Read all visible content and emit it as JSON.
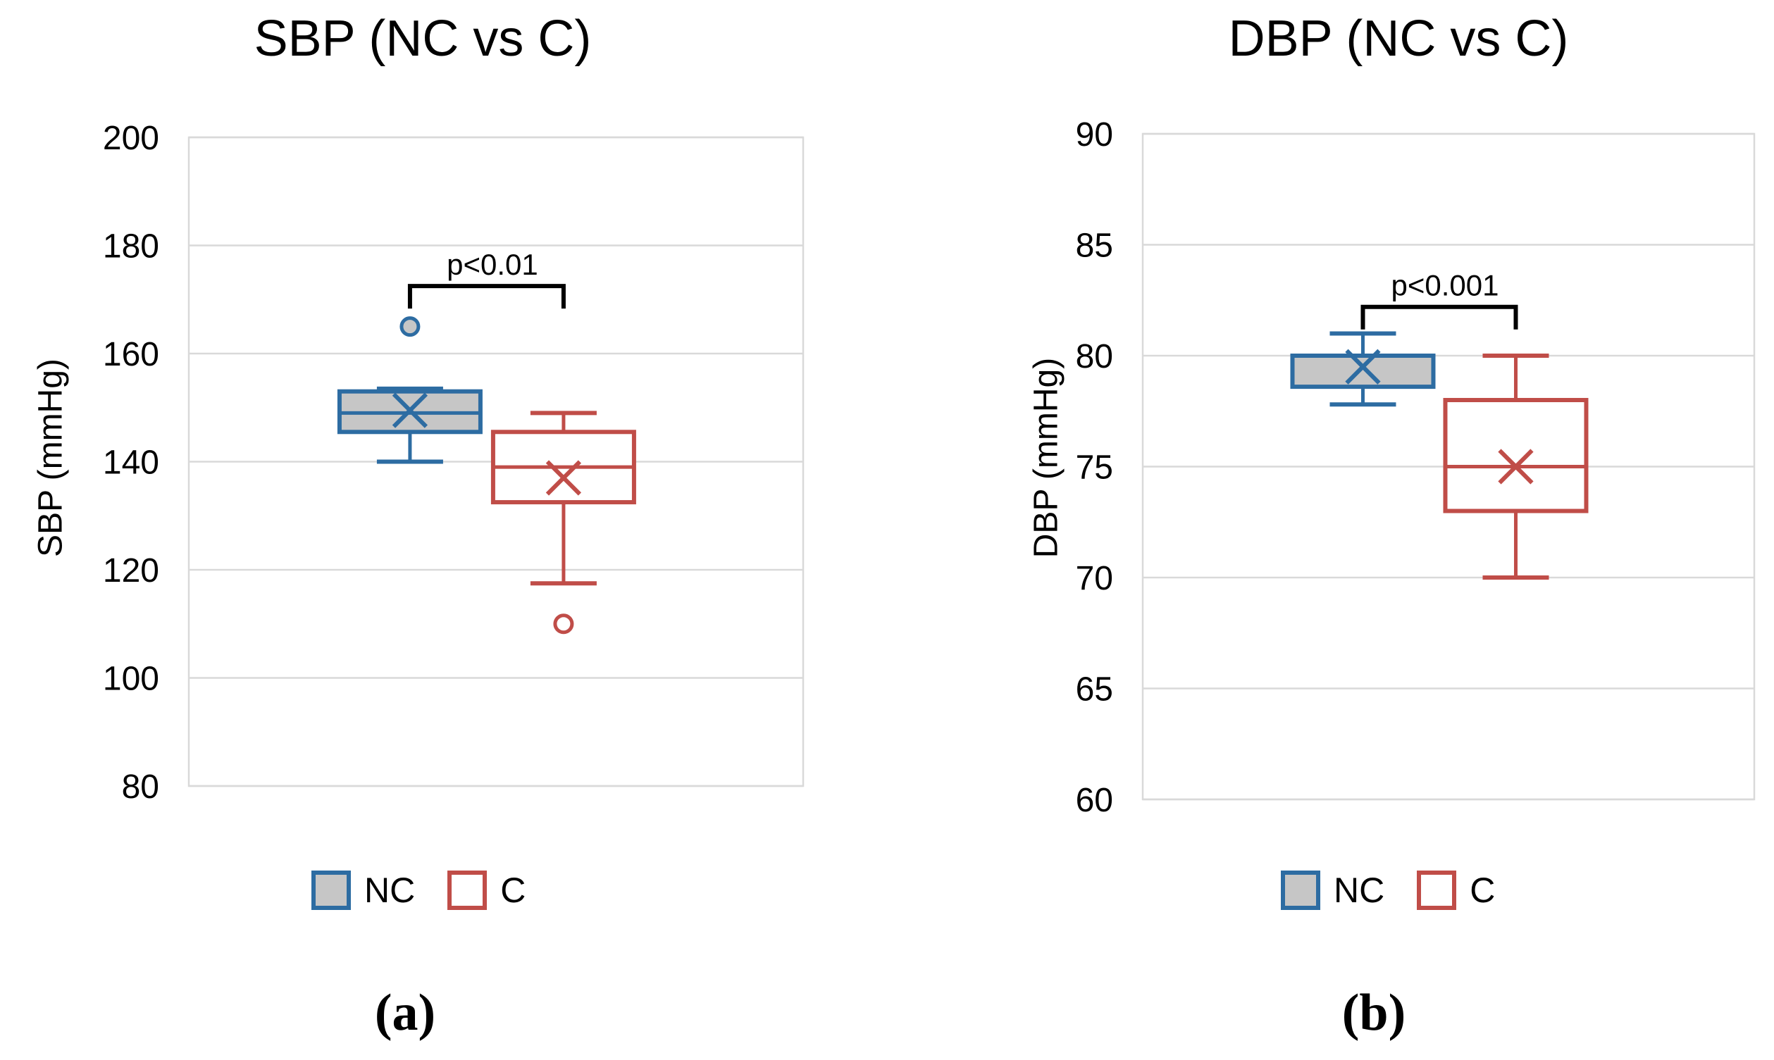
{
  "colors": {
    "nc_stroke": "#2D6CA2",
    "nc_fill": "#C6C6C6",
    "c_stroke": "#C04D48",
    "c_fill": "#FFFFFF",
    "gridline": "#D9D9D9",
    "bracket": "#000000",
    "text": "#000000",
    "background": "#FFFFFF"
  },
  "chart_data": [
    {
      "type": "boxplot",
      "title": "SBP (NC vs C)",
      "ylabel": "SBP (mmHg)",
      "ylim": [
        80,
        200
      ],
      "yticks": [
        200,
        180,
        160,
        140,
        120,
        100,
        80
      ],
      "grid": true,
      "legend_position": "bottom",
      "caption": "(a)",
      "significance": {
        "label": "p<0.01",
        "bracket_y": 172.5
      },
      "categories": [
        "NC",
        "C"
      ],
      "series": [
        {
          "name": "NC",
          "min": 140,
          "q1": 145.5,
          "median": 149,
          "q3": 153,
          "max": 153.5,
          "mean": 149.5,
          "outliers": [
            165
          ]
        },
        {
          "name": "C",
          "min": 117.5,
          "q1": 132.5,
          "median": 139,
          "q3": 145.5,
          "max": 149,
          "mean": 137,
          "outliers": [
            110
          ]
        }
      ]
    },
    {
      "type": "boxplot",
      "title": "DBP (NC vs C)",
      "ylabel": "DBP (mmHg)",
      "ylim": [
        60,
        90
      ],
      "yticks": [
        90,
        85,
        80,
        75,
        70,
        65,
        60
      ],
      "grid": true,
      "legend_position": "bottom",
      "caption": "(b)",
      "significance": {
        "label": "p<0.001",
        "bracket_y": 82.2
      },
      "categories": [
        "NC",
        "C"
      ],
      "series": [
        {
          "name": "NC",
          "min": 77.8,
          "q1": 78.6,
          "median": 78.6,
          "q3": 80,
          "max": 81,
          "mean": 79.5,
          "outliers": []
        },
        {
          "name": "C",
          "min": 70,
          "q1": 73,
          "median": 75,
          "q3": 78,
          "max": 80,
          "mean": 75,
          "outliers": []
        }
      ]
    }
  ]
}
